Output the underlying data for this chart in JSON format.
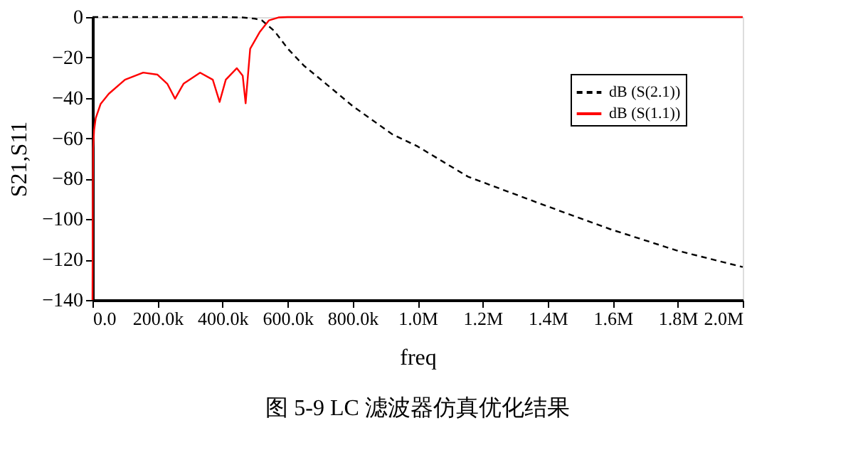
{
  "chart_data": {
    "type": "line",
    "title": "图 5-9  LC 滤波器仿真优化结果",
    "xlabel": "freq",
    "ylabel": "S21,S11",
    "xlim": [
      0,
      2000000
    ],
    "ylim": [
      -140,
      0
    ],
    "xticks": [
      {
        "value": 0,
        "label": "0.0"
      },
      {
        "value": 200000,
        "label": "200.0k"
      },
      {
        "value": 400000,
        "label": "400.0k"
      },
      {
        "value": 600000,
        "label": "600.0k"
      },
      {
        "value": 800000,
        "label": "800.0k"
      },
      {
        "value": 1000000,
        "label": "1.0M"
      },
      {
        "value": 1200000,
        "label": "1.2M"
      },
      {
        "value": 1400000,
        "label": "1.4M"
      },
      {
        "value": 1600000,
        "label": "1.6M"
      },
      {
        "value": 1800000,
        "label": "1.8M"
      },
      {
        "value": 2000000,
        "label": "2.0M"
      }
    ],
    "yticks": [
      0,
      -20,
      -40,
      -60,
      -80,
      -100,
      -120,
      -140
    ],
    "grid": false,
    "legend": "top right",
    "marker": "none",
    "series": [
      {
        "name": "dB (S(2.1))",
        "color": "#000000",
        "line_style": "dashed",
        "x": [
          0,
          200000,
          400000,
          460000,
          500000,
          521000,
          560000,
          601000,
          650000,
          718000,
          800000,
          922000,
          1000000,
          1155000,
          1388000,
          1593000,
          1797000,
          2000000
        ],
        "values": [
          0,
          0,
          0,
          -0.2,
          -0.8,
          -1.6,
          -7,
          -15.7,
          -24,
          -33,
          -44,
          -58,
          -64,
          -79,
          -93,
          -105,
          -115.5,
          -123.7
        ]
      },
      {
        "name": "dB (S(1.1))",
        "color": "#ff0000",
        "line_style": "solid",
        "x": [
          0,
          1000,
          2000,
          5000,
          10000,
          25000,
          50000,
          100000,
          156000,
          200000,
          230000,
          254000,
          280000,
          331000,
          370000,
          391000,
          410000,
          444000,
          462000,
          471000,
          485000,
          514000,
          543000,
          572000,
          600000,
          1000000,
          2000000
        ],
        "values": [
          -140,
          -90,
          -65,
          -56,
          -50,
          -43,
          -38,
          -31,
          -27.5,
          -28.5,
          -33,
          -40.4,
          -33,
          -27.5,
          -31,
          -42,
          -31,
          -25.3,
          -29,
          -42.7,
          -15.7,
          -7.5,
          -1.6,
          -0.2,
          0,
          0,
          0
        ]
      }
    ]
  }
}
